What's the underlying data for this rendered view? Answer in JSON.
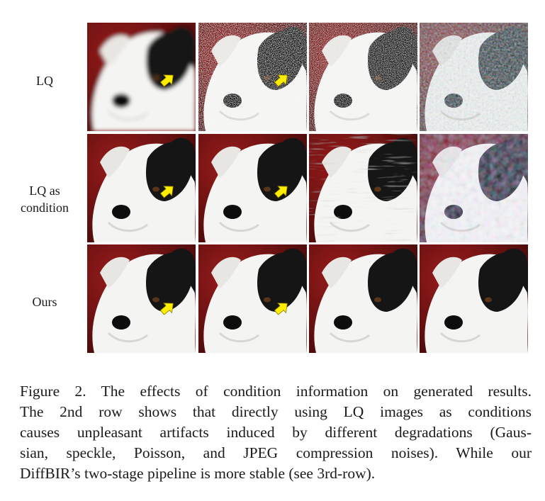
{
  "figure": {
    "rows": [
      {
        "label_lines": [
          "LQ"
        ],
        "noise": [
          "blur",
          "speckle",
          "poisson",
          "jpeg"
        ],
        "arrow": [
          true,
          true,
          false,
          false
        ]
      },
      {
        "label_lines": [
          "LQ as",
          "condition"
        ],
        "noise": [
          "light",
          "light",
          "fur",
          "color"
        ],
        "arrow": [
          true,
          true,
          false,
          false
        ]
      },
      {
        "label_lines": [
          "Ours"
        ],
        "noise": [
          "none",
          "none",
          "none",
          "none"
        ],
        "arrow": [
          true,
          true,
          false,
          false
        ]
      }
    ],
    "colors": {
      "background": "#7a1515",
      "fur": "#f4f4f2",
      "patch": "#151515",
      "arrow": "#ffee00"
    }
  },
  "caption": {
    "lines": [
      "Figure 2. The effects of condition information on generated results.",
      "The 2nd row shows that directly using LQ images as conditions",
      "causes unpleasant artifacts induced by different degradations (Gaus-",
      "sian, speckle, Poisson, and JPEG compression noises). While our",
      "DiffBIR’s two-stage pipeline is more stable (see 3rd-row)."
    ]
  }
}
